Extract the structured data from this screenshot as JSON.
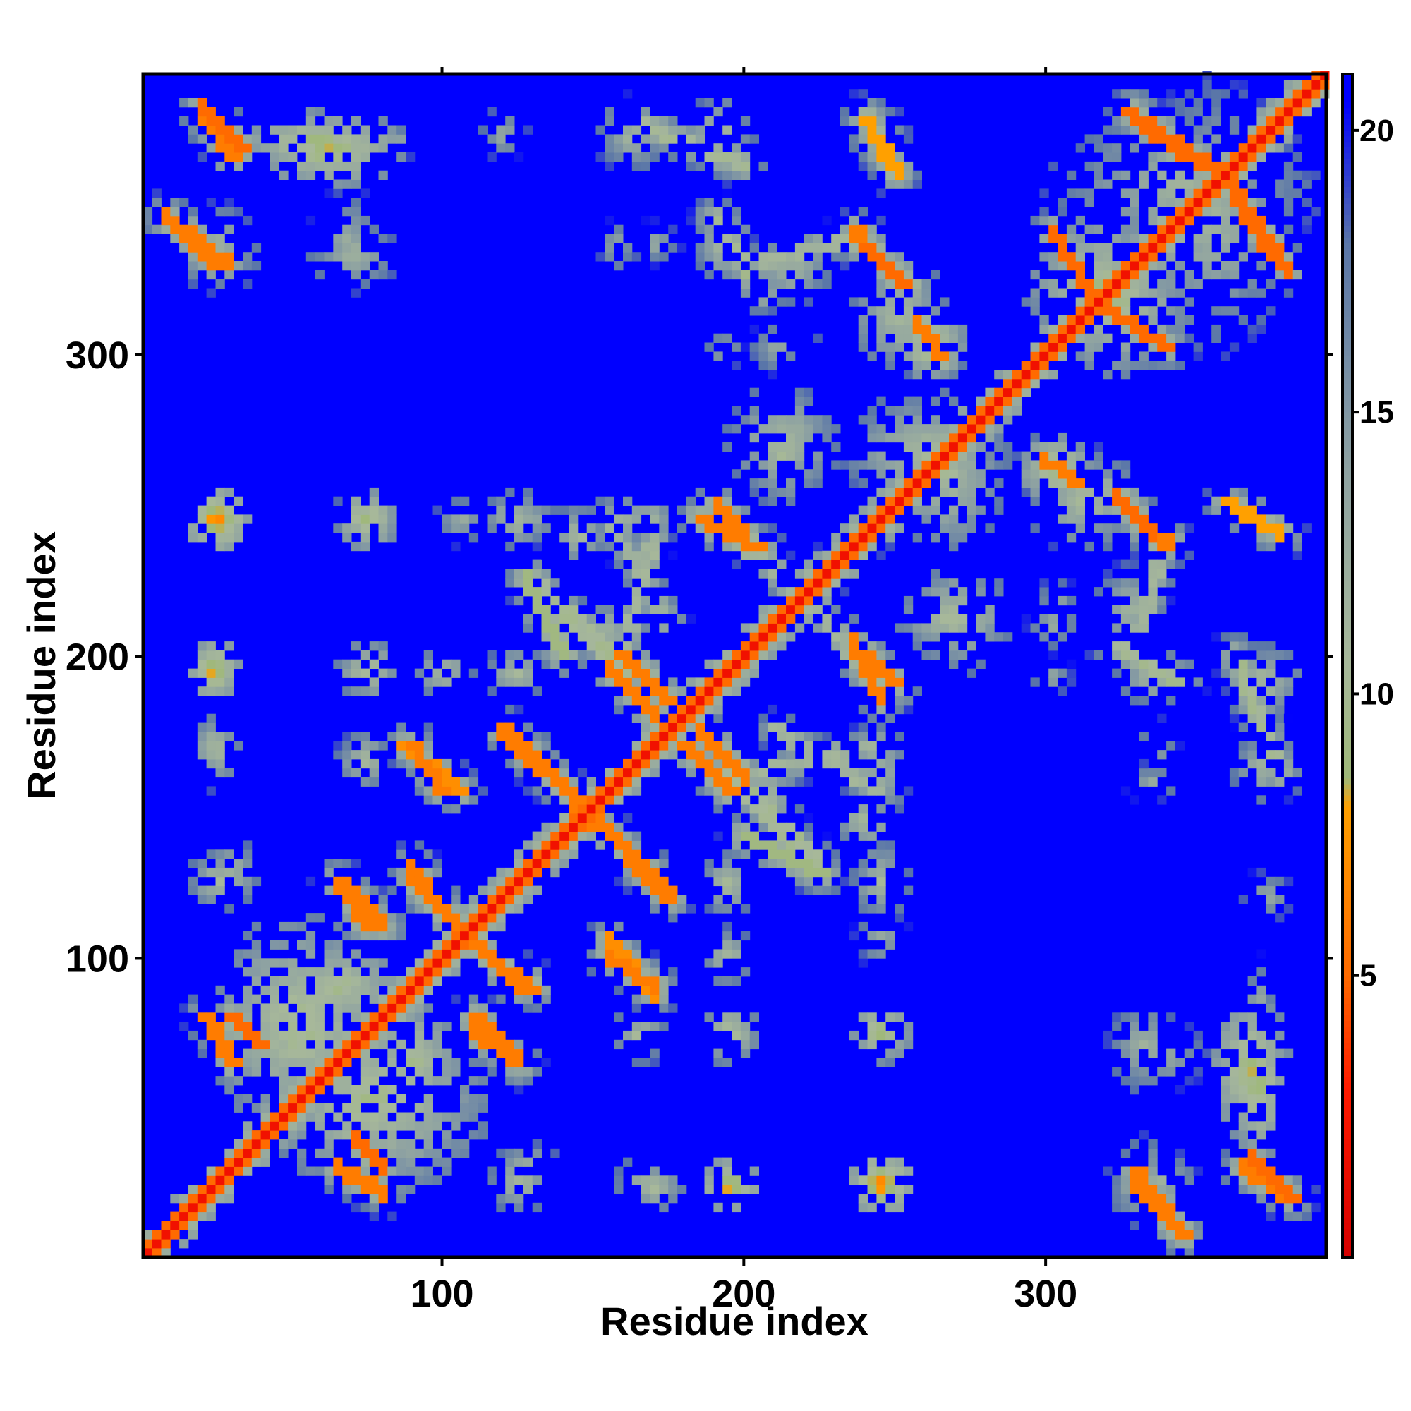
{
  "chart_data": {
    "type": "heatmap",
    "title": "",
    "xlabel": "Residue index",
    "ylabel": "Residue index",
    "xlim": [
      1,
      393
    ],
    "ylim": [
      1,
      393
    ],
    "x_ticks": [
      100,
      200,
      300
    ],
    "y_ticks": [
      100,
      200,
      300
    ],
    "n_residues": 393,
    "value_range": [
      0,
      21
    ],
    "colorbar": {
      "ticks": [
        5,
        10,
        15,
        20
      ],
      "stops": [
        {
          "value": 0,
          "color": "#d40000"
        },
        {
          "value": 3,
          "color": "#ff1a00"
        },
        {
          "value": 5,
          "color": "#ff6a00"
        },
        {
          "value": 8,
          "color": "#ffa000"
        },
        {
          "value": 8.5,
          "color": "#9fb878"
        },
        {
          "value": 10.5,
          "color": "#a7b89a"
        },
        {
          "value": 14,
          "color": "#8ea2a2"
        },
        {
          "value": 18,
          "color": "#5a76a8"
        },
        {
          "value": 20.5,
          "color": "#0000ff"
        },
        {
          "value": 21,
          "color": "#0000ff"
        }
      ]
    },
    "background_value": 21,
    "diagonal": {
      "core_value": 2,
      "core_halfwidth": 3,
      "shell_value": 10,
      "shell_halfwidth": 10
    },
    "contact_features": [
      {
        "kind": "anti",
        "x": [
          20,
          33
        ],
        "y": [
          381,
          368
        ],
        "value": 5
      },
      {
        "kind": "anti",
        "x": [
          8,
          28
        ],
        "y": [
          345,
          330
        ],
        "value": 6
      },
      {
        "kind": "blob",
        "x": [
          20,
          32
        ],
        "y": [
          345,
          330
        ],
        "value": 11
      },
      {
        "kind": "blob",
        "x": [
          40,
          75
        ],
        "y": [
          375,
          365
        ],
        "value": 8
      },
      {
        "kind": "blob",
        "x": [
          60,
          75
        ],
        "y": [
          350,
          325
        ],
        "value": 12
      },
      {
        "kind": "blob",
        "x": [
          75,
          95
        ],
        "y": [
          372,
          368
        ],
        "value": 12
      },
      {
        "kind": "blob",
        "x": [
          115,
          125
        ],
        "y": [
          378,
          368
        ],
        "value": 12
      },
      {
        "kind": "anti",
        "x": [
          160,
          200
        ],
        "y": [
          378,
          362
        ],
        "value": 10
      },
      {
        "kind": "blob",
        "x": [
          165,
          175
        ],
        "y": [
          340,
          333
        ],
        "value": 12
      },
      {
        "kind": "anti",
        "x": [
          190,
          205
        ],
        "y": [
          345,
          320
        ],
        "value": 10
      },
      {
        "kind": "par",
        "x": [
          205,
          240
        ],
        "y": [
          330,
          340
        ],
        "value": 11
      },
      {
        "kind": "anti",
        "x": [
          240,
          250
        ],
        "y": [
          378,
          360
        ],
        "value": 8
      },
      {
        "kind": "anti",
        "x": [
          238,
          255
        ],
        "y": [
          336,
          322
        ],
        "value": 5
      },
      {
        "kind": "blob",
        "x": [
          240,
          265
        ],
        "y": [
          320,
          298
        ],
        "value": 11
      },
      {
        "kind": "blob",
        "x": [
          255,
          268
        ],
        "y": [
          310,
          296
        ],
        "value": 8
      },
      {
        "kind": "blob",
        "x": [
          205,
          215
        ],
        "y": [
          307,
          297
        ],
        "value": 12
      },
      {
        "kind": "blob",
        "x": [
          190,
          196
        ],
        "y": [
          305,
          298
        ],
        "value": 12
      },
      {
        "kind": "anti",
        "x": [
          335,
          355
        ],
        "y": [
          375,
          361
        ],
        "value": 5
      },
      {
        "kind": "anti",
        "x": [
          365,
          380
        ],
        "y": [
          345,
          328
        ],
        "value": 5
      },
      {
        "kind": "blob",
        "x": [
          310,
          380
        ],
        "y": [
          375,
          335
        ],
        "value": 11
      },
      {
        "kind": "blob",
        "x": [
          305,
          340
        ],
        "y": [
          335,
          300
        ],
        "value": 9
      },
      {
        "kind": "anti",
        "x": [
          320,
          340
        ],
        "y": [
          315,
          302
        ],
        "value": 5
      },
      {
        "kind": "blob",
        "x": [
          200,
          225
        ],
        "y": [
          283,
          258
        ],
        "value": 10
      },
      {
        "kind": "blob",
        "x": [
          255,
          280
        ],
        "y": [
          280,
          240
        ],
        "value": 10
      },
      {
        "kind": "anti",
        "x": [
          185,
          205
        ],
        "y": [
          245,
          235
        ],
        "value": 6
      },
      {
        "kind": "anti",
        "x": [
          240,
          250
        ],
        "y": [
          200,
          190
        ],
        "value": 6
      },
      {
        "kind": "par",
        "x": [
          210,
          245
        ],
        "y": [
          205,
          240
        ],
        "value": 13
      },
      {
        "kind": "anti",
        "x": [
          195,
          245
        ],
        "y": [
          245,
          190
        ],
        "value": 11
      },
      {
        "kind": "blob",
        "x": [
          255,
          280
        ],
        "y": [
          220,
          205
        ],
        "value": 10
      },
      {
        "kind": "blob",
        "x": [
          20,
          30
        ],
        "y": [
          250,
          240
        ],
        "value": 10
      },
      {
        "kind": "blob",
        "x": [
          68,
          78
        ],
        "y": [
          250,
          240
        ],
        "value": 10
      },
      {
        "kind": "blob",
        "x": [
          100,
          112
        ],
        "y": [
          250,
          240
        ],
        "value": 12
      },
      {
        "kind": "blob",
        "x": [
          118,
          130
        ],
        "y": [
          250,
          240
        ],
        "value": 10
      },
      {
        "kind": "blob",
        "x": [
          140,
          150
        ],
        "y": [
          245,
          235
        ],
        "value": 10
      },
      {
        "kind": "blob",
        "x": [
          165,
          172
        ],
        "y": [
          248,
          240
        ],
        "value": 10
      },
      {
        "kind": "anti",
        "x": [
          298,
          310
        ],
        "y": [
          265,
          258
        ],
        "value": 6
      },
      {
        "kind": "anti",
        "x": [
          325,
          340
        ],
        "y": [
          250,
          237
        ],
        "value": 6
      },
      {
        "kind": "blob",
        "x": [
          300,
          325
        ],
        "y": [
          262,
          240
        ],
        "value": 10
      },
      {
        "kind": "blob",
        "x": [
          365,
          378
        ],
        "y": [
          250,
          238
        ],
        "value": 11
      },
      {
        "kind": "blob",
        "x": [
          300,
          306
        ],
        "y": [
          222,
          212
        ],
        "value": 12
      },
      {
        "kind": "blob",
        "x": [
          320,
          335
        ],
        "y": [
          225,
          205
        ],
        "value": 11
      },
      {
        "kind": "blob",
        "x": [
          20,
          30
        ],
        "y": [
          200,
          190
        ],
        "value": 10
      },
      {
        "kind": "blob",
        "x": [
          68,
          78
        ],
        "y": [
          198,
          190
        ],
        "value": 10
      },
      {
        "kind": "blob",
        "x": [
          95,
          105
        ],
        "y": [
          198,
          190
        ],
        "value": 10
      },
      {
        "kind": "blob",
        "x": [
          118,
          130
        ],
        "y": [
          198,
          190
        ],
        "value": 10
      },
      {
        "kind": "blob",
        "x": [
          328,
          345
        ],
        "y": [
          198,
          188
        ],
        "value": 10
      },
      {
        "kind": "blob",
        "x": [
          365,
          380
        ],
        "y": [
          198,
          185
        ],
        "value": 10
      },
      {
        "kind": "anti",
        "x": [
          130,
          160
        ],
        "y": [
          225,
          195
        ],
        "value": 10
      },
      {
        "kind": "anti",
        "x": [
          160,
          175
        ],
        "y": [
          200,
          185
        ],
        "value": 6
      },
      {
        "kind": "anti",
        "x": [
          155,
          175
        ],
        "y": [
          245,
          210
        ],
        "value": 11
      },
      {
        "kind": "blob",
        "x": [
          140,
          165
        ],
        "y": [
          215,
          200
        ],
        "value": 11
      },
      {
        "kind": "blob",
        "x": [
          20,
          30
        ],
        "y": [
          175,
          160
        ],
        "value": 11
      },
      {
        "kind": "blob",
        "x": [
          68,
          78
        ],
        "y": [
          170,
          160
        ],
        "value": 11
      },
      {
        "kind": "anti",
        "x": [
          88,
          105
        ],
        "y": [
          170,
          155
        ],
        "value": 7
      },
      {
        "kind": "anti",
        "x": [
          128,
          145
        ],
        "y": [
          168,
          150
        ],
        "value": 6
      },
      {
        "kind": "anti",
        "x": [
          180,
          195
        ],
        "y": [
          170,
          155
        ],
        "value": 6
      },
      {
        "kind": "anti",
        "x": [
          160,
          175
        ],
        "y": [
          135,
          120
        ],
        "value": 6
      },
      {
        "kind": "anti",
        "x": [
          200,
          225
        ],
        "y": [
          155,
          130
        ],
        "value": 11
      },
      {
        "kind": "par",
        "x": [
          200,
          240
        ],
        "y": [
          160,
          170
        ],
        "value": 11
      },
      {
        "kind": "blob",
        "x": [
          240,
          250
        ],
        "y": [
          170,
          150
        ],
        "value": 11
      },
      {
        "kind": "anti",
        "x": [
          200,
          225
        ],
        "y": [
          140,
          128
        ],
        "value": 9
      },
      {
        "kind": "blob",
        "x": [
          240,
          250
        ],
        "y": [
          135,
          115
        ],
        "value": 11
      },
      {
        "kind": "blob",
        "x": [
          330,
          340
        ],
        "y": [
          160,
          155
        ],
        "value": 12
      },
      {
        "kind": "blob",
        "x": [
          365,
          378
        ],
        "y": [
          170,
          155
        ],
        "value": 11
      },
      {
        "kind": "blob",
        "x": [
          25,
          35
        ],
        "y": [
          135,
          120
        ],
        "value": 11
      },
      {
        "kind": "anti",
        "x": [
          65,
          80
        ],
        "y": [
          125,
          110
        ],
        "value": 6
      },
      {
        "kind": "anti",
        "x": [
          90,
          105
        ],
        "y": [
          125,
          110
        ],
        "value": 6
      },
      {
        "kind": "anti",
        "x": [
          115,
          130
        ],
        "y": [
          100,
          90
        ],
        "value": 6
      },
      {
        "kind": "anti",
        "x": [
          110,
          125
        ],
        "y": [
          75,
          65
        ],
        "value": 6
      },
      {
        "kind": "blob",
        "x": [
          30,
          75
        ],
        "y": [
          105,
          50
        ],
        "value": 9
      },
      {
        "kind": "anti",
        "x": [
          30,
          40
        ],
        "y": [
          80,
          70
        ],
        "value": 5
      },
      {
        "kind": "blob",
        "x": [
          80,
          100
        ],
        "y": [
          80,
          50
        ],
        "value": 9
      },
      {
        "kind": "anti",
        "x": [
          155,
          170
        ],
        "y": [
          100,
          90
        ],
        "value": 6
      },
      {
        "kind": "blob",
        "x": [
          160,
          170
        ],
        "y": [
          78,
          70
        ],
        "value": 10
      },
      {
        "kind": "blob",
        "x": [
          190,
          200
        ],
        "y": [
          80,
          70
        ],
        "value": 9
      },
      {
        "kind": "blob",
        "x": [
          240,
          250
        ],
        "y": [
          80,
          70
        ],
        "value": 8
      },
      {
        "kind": "blob",
        "x": [
          325,
          340
        ],
        "y": [
          80,
          60
        ],
        "value": 11
      },
      {
        "kind": "blob",
        "x": [
          360,
          375
        ],
        "y": [
          80,
          45
        ],
        "value": 8
      },
      {
        "kind": "anti",
        "x": [
          65,
          80
        ],
        "y": [
          30,
          22
        ],
        "value": 6
      },
      {
        "kind": "blob",
        "x": [
          120,
          130
        ],
        "y": [
          30,
          20
        ],
        "value": 10
      },
      {
        "kind": "blob",
        "x": [
          165,
          175
        ],
        "y": [
          28,
          20
        ],
        "value": 10
      },
      {
        "kind": "blob",
        "x": [
          190,
          200
        ],
        "y": [
          28,
          20
        ],
        "value": 7
      },
      {
        "kind": "blob",
        "x": [
          240,
          250
        ],
        "y": [
          30,
          20
        ],
        "value": 6
      },
      {
        "kind": "anti",
        "x": [
          330,
          345
        ],
        "y": [
          25,
          8
        ],
        "value": 6
      },
      {
        "kind": "anti",
        "x": [
          365,
          380
        ],
        "y": [
          30,
          20
        ],
        "value": 6
      },
      {
        "kind": "blob",
        "x": [
          325,
          340
        ],
        "y": [
          35,
          15
        ],
        "value": 11
      }
    ]
  }
}
